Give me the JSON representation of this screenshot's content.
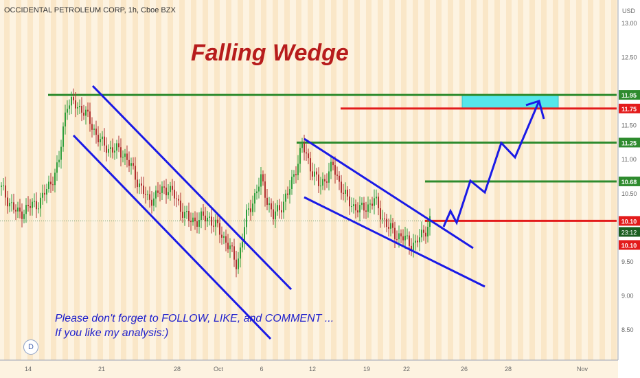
{
  "header": {
    "symbol_title": "OCCIDENTAL PETROLEUM CORP, 1h, Cboe BZX",
    "currency": "USD",
    "pattern_title": "Falling Wedge"
  },
  "annotations": {
    "note_line1": "Please don't forget to FOLLOW, LIKE, and COMMENT ...",
    "note_line2": "If you like my analysis:)",
    "badge": "D",
    "countdown": "23:12"
  },
  "colors": {
    "background": "#fdf3e1",
    "green_level": "#2e8b2e",
    "red_level": "#e31b1b",
    "trendline": "#1a1ae6",
    "target_box": "#55e6ea",
    "candle_up": "#2e9e3a",
    "candle_down": "#b03030"
  },
  "chart_data": {
    "type": "line",
    "title": "Falling Wedge",
    "ylim": [
      8.25,
      13.25
    ],
    "y_ticks": [
      "13.00",
      "12.50",
      "11.50",
      "11.00",
      "10.50",
      "9.50",
      "9.00",
      "8.50"
    ],
    "x_ticks": [
      "14",
      "21",
      "28",
      "Oct",
      "6",
      "12",
      "19",
      "22",
      "26",
      "28",
      "Nov"
    ],
    "levels": [
      {
        "value": 11.95,
        "label": "11.95",
        "color": "green"
      },
      {
        "value": 11.75,
        "label": "11.75",
        "color": "red"
      },
      {
        "value": 11.25,
        "label": "11.25",
        "color": "green"
      },
      {
        "value": 10.68,
        "label": "10.68",
        "color": "green"
      },
      {
        "value": 10.1,
        "label": "10.10",
        "color": "red"
      }
    ],
    "last_price": {
      "value": 10.1,
      "label": "10.10"
    },
    "target_zone": [
      11.75,
      11.95
    ],
    "price_series": [
      {
        "x": "14",
        "y": 10.6
      },
      {
        "x": "16",
        "y": 10.2
      },
      {
        "x": "17",
        "y": 10.9
      },
      {
        "x": "18",
        "y": 11.8
      },
      {
        "x": "19",
        "y": 11.85
      },
      {
        "x": "20",
        "y": 11.5
      },
      {
        "x": "21",
        "y": 11.15
      },
      {
        "x": "23",
        "y": 11.2
      },
      {
        "x": "25",
        "y": 10.5
      },
      {
        "x": "27",
        "y": 10.6
      },
      {
        "x": "28",
        "y": 10.1
      },
      {
        "x": "30",
        "y": 10.2
      },
      {
        "x": "Oct",
        "y": 9.85
      },
      {
        "x": "2",
        "y": 9.45
      },
      {
        "x": "4",
        "y": 10.2
      },
      {
        "x": "6",
        "y": 10.7
      },
      {
        "x": "8",
        "y": 10.15
      },
      {
        "x": "9",
        "y": 10.5
      },
      {
        "x": "10",
        "y": 11.2
      },
      {
        "x": "12",
        "y": 10.6
      },
      {
        "x": "14",
        "y": 10.9
      },
      {
        "x": "16",
        "y": 10.3
      },
      {
        "x": "18",
        "y": 10.5
      },
      {
        "x": "19",
        "y": 10.1
      },
      {
        "x": "21",
        "y": 9.75
      },
      {
        "x": "22",
        "y": 10.1
      }
    ]
  }
}
